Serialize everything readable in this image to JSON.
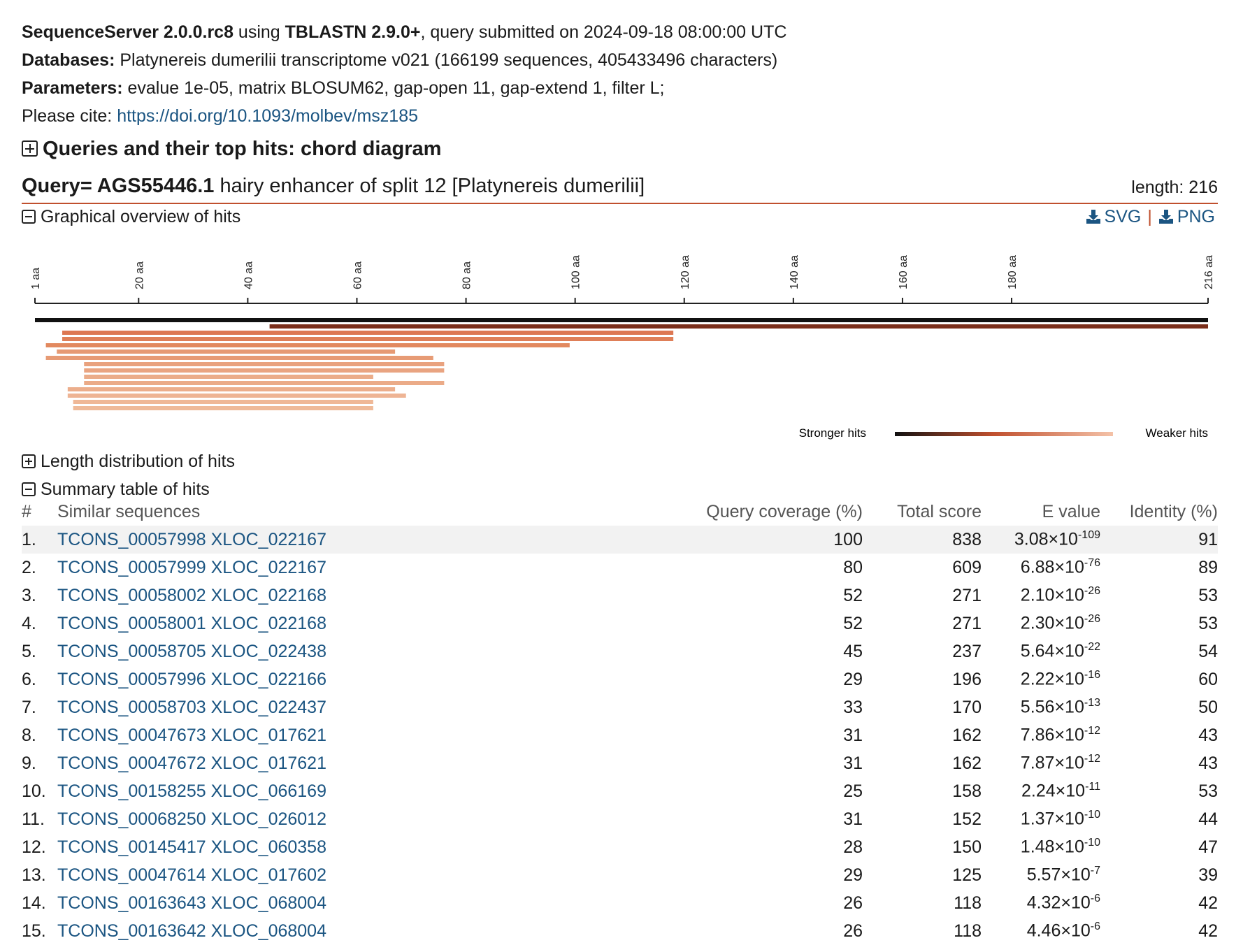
{
  "meta": {
    "app_name": "SequenceServer 2.0.0.rc8",
    "using_word": " using ",
    "program": "TBLASTN 2.9.0+",
    "submitted": ", query submitted on 2024-09-18 08:00:00 UTC",
    "databases_label": "Databases:",
    "databases_value": " Platynereis dumerilii transcriptome v021 (166199 sequences, 405433496 characters)",
    "parameters_label": "Parameters:",
    "parameters_value": " evalue 1e-05, matrix BLOSUM62, gap-open 11, gap-extend 1, filter L;",
    "cite_label": "Please cite: ",
    "cite_link": "https://doi.org/10.1093/molbev/msz185"
  },
  "chord_section": {
    "label": "Queries and their top hits: chord diagram"
  },
  "query": {
    "id": "Query= AGS55446.1",
    "description": " hairy enhancer of split 12 [Platynereis dumerilii]",
    "length_text": "length: 216"
  },
  "overview": {
    "label": "Graphical overview of hits",
    "svg_label": "SVG",
    "png_label": "PNG",
    "axis_ticks": [
      "1 aa",
      "20 aa",
      "40 aa",
      "60 aa",
      "80 aa",
      "100 aa",
      "120 aa",
      "140 aa",
      "160 aa",
      "180 aa",
      "216 aa"
    ],
    "axis_tick_values": [
      1,
      20,
      40,
      60,
      80,
      100,
      120,
      140,
      160,
      180,
      216
    ],
    "query_length": 216,
    "hits": [
      {
        "start": 1,
        "end": 216,
        "color": "#111111"
      },
      {
        "start": 44,
        "end": 216,
        "color": "#7a2e1a"
      },
      {
        "start": 6,
        "end": 118,
        "color": "#dd7752"
      },
      {
        "start": 6,
        "end": 118,
        "color": "#df7f58"
      },
      {
        "start": 3,
        "end": 99,
        "color": "#e2895f"
      },
      {
        "start": 5,
        "end": 67,
        "color": "#e69a74"
      },
      {
        "start": 3,
        "end": 74,
        "color": "#e79b75"
      },
      {
        "start": 10,
        "end": 76,
        "color": "#e9a27e"
      },
      {
        "start": 10,
        "end": 76,
        "color": "#e9a481"
      },
      {
        "start": 10,
        "end": 63,
        "color": "#ebac89"
      },
      {
        "start": 10,
        "end": 76,
        "color": "#ebab88"
      },
      {
        "start": 7,
        "end": 67,
        "color": "#ecae8c"
      },
      {
        "start": 7,
        "end": 69,
        "color": "#eeb494"
      },
      {
        "start": 8,
        "end": 63,
        "color": "#efb897"
      },
      {
        "start": 8,
        "end": 63,
        "color": "#efba99"
      }
    ],
    "legend_strong": "Stronger hits",
    "legend_weak": "Weaker hits",
    "gradient_colors": [
      "#111111",
      "#c0502e",
      "#f4c2a8"
    ]
  },
  "length_section": {
    "label": "Length distribution of hits"
  },
  "summary_section": {
    "label": "Summary table of hits"
  },
  "table": {
    "headers": [
      "#",
      "Similar sequences",
      "Query coverage (%)",
      "Total score",
      "E value",
      "Identity (%)"
    ],
    "rows": [
      {
        "num": "1.",
        "name": "TCONS_00057998 XLOC_022167",
        "coverage": "100",
        "score": "838",
        "e_mantissa": "3.08×10",
        "e_exp": "-109",
        "identity": "91"
      },
      {
        "num": "2.",
        "name": "TCONS_00057999 XLOC_022167",
        "coverage": "80",
        "score": "609",
        "e_mantissa": "6.88×10",
        "e_exp": "-76",
        "identity": "89"
      },
      {
        "num": "3.",
        "name": "TCONS_00058002 XLOC_022168",
        "coverage": "52",
        "score": "271",
        "e_mantissa": "2.10×10",
        "e_exp": "-26",
        "identity": "53"
      },
      {
        "num": "4.",
        "name": "TCONS_00058001 XLOC_022168",
        "coverage": "52",
        "score": "271",
        "e_mantissa": "2.30×10",
        "e_exp": "-26",
        "identity": "53"
      },
      {
        "num": "5.",
        "name": "TCONS_00058705 XLOC_022438",
        "coverage": "45",
        "score": "237",
        "e_mantissa": "5.64×10",
        "e_exp": "-22",
        "identity": "54"
      },
      {
        "num": "6.",
        "name": "TCONS_00057996 XLOC_022166",
        "coverage": "29",
        "score": "196",
        "e_mantissa": "2.22×10",
        "e_exp": "-16",
        "identity": "60"
      },
      {
        "num": "7.",
        "name": "TCONS_00058703 XLOC_022437",
        "coverage": "33",
        "score": "170",
        "e_mantissa": "5.56×10",
        "e_exp": "-13",
        "identity": "50"
      },
      {
        "num": "8.",
        "name": "TCONS_00047673 XLOC_017621",
        "coverage": "31",
        "score": "162",
        "e_mantissa": "7.86×10",
        "e_exp": "-12",
        "identity": "43"
      },
      {
        "num": "9.",
        "name": "TCONS_00047672 XLOC_017621",
        "coverage": "31",
        "score": "162",
        "e_mantissa": "7.87×10",
        "e_exp": "-12",
        "identity": "43"
      },
      {
        "num": "10.",
        "name": "TCONS_00158255 XLOC_066169",
        "coverage": "25",
        "score": "158",
        "e_mantissa": "2.24×10",
        "e_exp": "-11",
        "identity": "53"
      },
      {
        "num": "11.",
        "name": "TCONS_00068250 XLOC_026012",
        "coverage": "31",
        "score": "152",
        "e_mantissa": "1.37×10",
        "e_exp": "-10",
        "identity": "44"
      },
      {
        "num": "12.",
        "name": "TCONS_00145417 XLOC_060358",
        "coverage": "28",
        "score": "150",
        "e_mantissa": "1.48×10",
        "e_exp": "-10",
        "identity": "47"
      },
      {
        "num": "13.",
        "name": "TCONS_00047614 XLOC_017602",
        "coverage": "29",
        "score": "125",
        "e_mantissa": "5.57×10",
        "e_exp": "-7",
        "identity": "39"
      },
      {
        "num": "14.",
        "name": "TCONS_00163643 XLOC_068004",
        "coverage": "26",
        "score": "118",
        "e_mantissa": "4.32×10",
        "e_exp": "-6",
        "identity": "42"
      },
      {
        "num": "15.",
        "name": "TCONS_00163642 XLOC_068004",
        "coverage": "26",
        "score": "118",
        "e_mantissa": "4.46×10",
        "e_exp": "-6",
        "identity": "42"
      }
    ]
  }
}
